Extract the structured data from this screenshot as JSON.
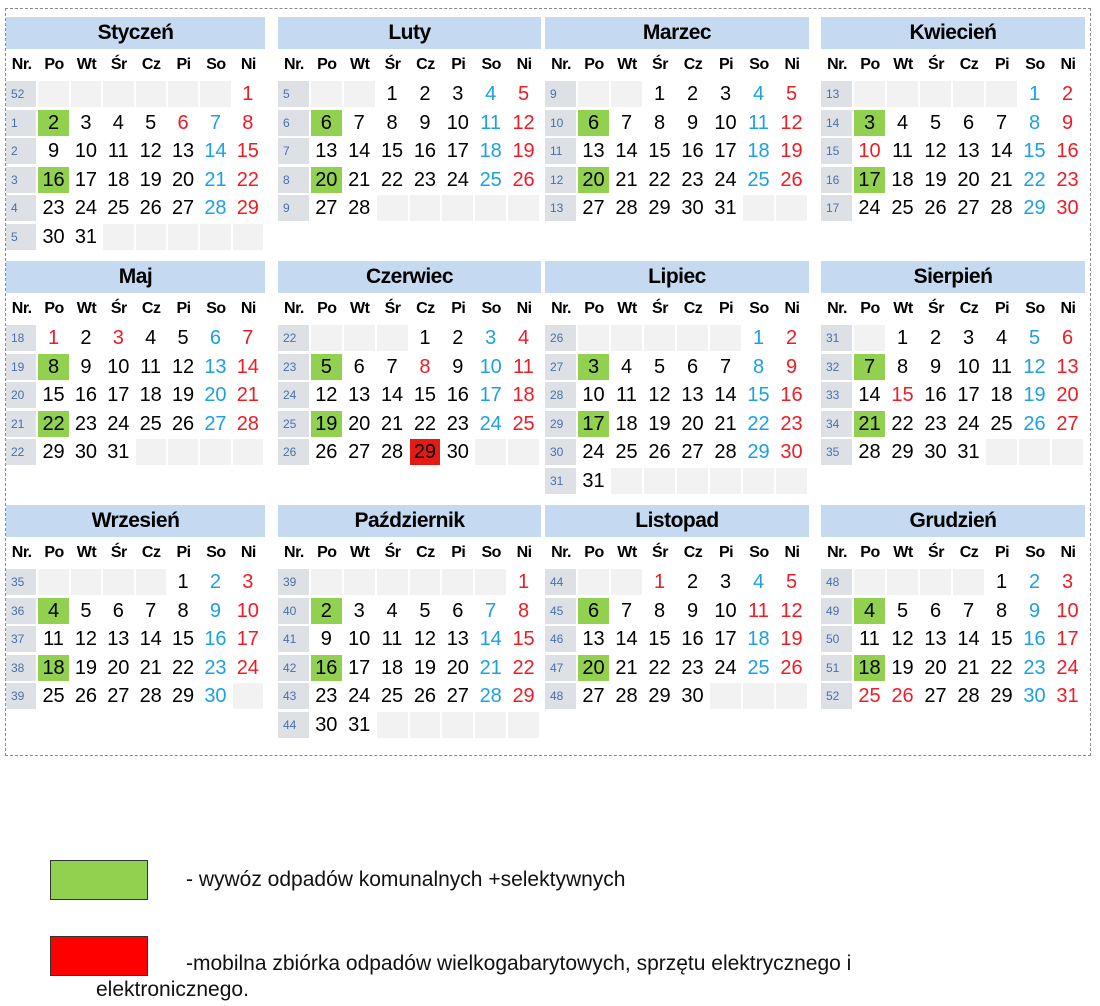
{
  "header_labels": [
    "Nr.",
    "Po",
    "Wt",
    "Śr",
    "Cz",
    "Pi",
    "So",
    "Ni"
  ],
  "colors": {
    "collection": "#92d050",
    "bulky": "#e31b13",
    "saturday": "#1ba1e2",
    "sunday": "#ee1c24",
    "header_bg": "#c5d9f1"
  },
  "months": [
    {
      "name": "Styczeń",
      "weeks": [
        {
          "nr": "52",
          "days": [
            "",
            "",
            "",
            "",
            "",
            "",
            "1"
          ]
        },
        {
          "nr": "1",
          "days": [
            "2",
            "3",
            "4",
            "5",
            "6",
            "7",
            "8"
          ]
        },
        {
          "nr": "2",
          "days": [
            "9",
            "10",
            "11",
            "12",
            "13",
            "14",
            "15"
          ]
        },
        {
          "nr": "3",
          "days": [
            "16",
            "17",
            "18",
            "19",
            "20",
            "21",
            "22"
          ]
        },
        {
          "nr": "4",
          "days": [
            "23",
            "24",
            "25",
            "26",
            "27",
            "28",
            "29"
          ]
        },
        {
          "nr": "5",
          "days": [
            "30",
            "31",
            "",
            "",
            "",
            "",
            ""
          ]
        }
      ],
      "green": [
        "2",
        "16"
      ],
      "red": [],
      "extra_red": [
        "6"
      ]
    },
    {
      "name": "Luty",
      "weeks": [
        {
          "nr": "5",
          "days": [
            "",
            "",
            "1",
            "2",
            "3",
            "4",
            "5"
          ]
        },
        {
          "nr": "6",
          "days": [
            "6",
            "7",
            "8",
            "9",
            "10",
            "11",
            "12"
          ]
        },
        {
          "nr": "7",
          "days": [
            "13",
            "14",
            "15",
            "16",
            "17",
            "18",
            "19"
          ]
        },
        {
          "nr": "8",
          "days": [
            "20",
            "21",
            "22",
            "23",
            "24",
            "25",
            "26"
          ]
        },
        {
          "nr": "9",
          "days": [
            "27",
            "28",
            "",
            "",
            "",
            "",
            ""
          ]
        }
      ],
      "green": [
        "6",
        "20"
      ],
      "red": [],
      "extra_red": []
    },
    {
      "name": "Marzec",
      "weeks": [
        {
          "nr": "9",
          "days": [
            "",
            "",
            "1",
            "2",
            "3",
            "4",
            "5"
          ]
        },
        {
          "nr": "10",
          "days": [
            "6",
            "7",
            "8",
            "9",
            "10",
            "11",
            "12"
          ]
        },
        {
          "nr": "11",
          "days": [
            "13",
            "14",
            "15",
            "16",
            "17",
            "18",
            "19"
          ]
        },
        {
          "nr": "12",
          "days": [
            "20",
            "21",
            "22",
            "23",
            "24",
            "25",
            "26"
          ]
        },
        {
          "nr": "13",
          "days": [
            "27",
            "28",
            "29",
            "30",
            "31",
            "",
            ""
          ]
        }
      ],
      "green": [
        "6",
        "20"
      ],
      "red": [],
      "extra_red": []
    },
    {
      "name": "Kwiecień",
      "weeks": [
        {
          "nr": "13",
          "days": [
            "",
            "",
            "",
            "",
            "",
            "1",
            "2"
          ]
        },
        {
          "nr": "14",
          "days": [
            "3",
            "4",
            "5",
            "6",
            "7",
            "8",
            "9"
          ]
        },
        {
          "nr": "15",
          "days": [
            "10",
            "11",
            "12",
            "13",
            "14",
            "15",
            "16"
          ]
        },
        {
          "nr": "16",
          "days": [
            "17",
            "18",
            "19",
            "20",
            "21",
            "22",
            "23"
          ]
        },
        {
          "nr": "17",
          "days": [
            "24",
            "25",
            "26",
            "27",
            "28",
            "29",
            "30"
          ]
        }
      ],
      "green": [
        "3",
        "17"
      ],
      "red": [],
      "extra_red": [
        "10"
      ]
    },
    {
      "name": "Maj",
      "weeks": [
        {
          "nr": "18",
          "days": [
            "1",
            "2",
            "3",
            "4",
            "5",
            "6",
            "7"
          ]
        },
        {
          "nr": "19",
          "days": [
            "8",
            "9",
            "10",
            "11",
            "12",
            "13",
            "14"
          ]
        },
        {
          "nr": "20",
          "days": [
            "15",
            "16",
            "17",
            "18",
            "19",
            "20",
            "21"
          ]
        },
        {
          "nr": "21",
          "days": [
            "22",
            "23",
            "24",
            "25",
            "26",
            "27",
            "28"
          ]
        },
        {
          "nr": "22",
          "days": [
            "29",
            "30",
            "31",
            "",
            "",
            "",
            ""
          ]
        }
      ],
      "green": [
        "8",
        "22"
      ],
      "red": [],
      "extra_red": [
        "1",
        "3"
      ]
    },
    {
      "name": "Czerwiec",
      "weeks": [
        {
          "nr": "22",
          "days": [
            "",
            "",
            "",
            "1",
            "2",
            "3",
            "4"
          ]
        },
        {
          "nr": "23",
          "days": [
            "5",
            "6",
            "7",
            "8",
            "9",
            "10",
            "11"
          ]
        },
        {
          "nr": "24",
          "days": [
            "12",
            "13",
            "14",
            "15",
            "16",
            "17",
            "18"
          ]
        },
        {
          "nr": "25",
          "days": [
            "19",
            "20",
            "21",
            "22",
            "23",
            "24",
            "25"
          ]
        },
        {
          "nr": "26",
          "days": [
            "26",
            "27",
            "28",
            "29",
            "30",
            "",
            ""
          ]
        }
      ],
      "green": [
        "5",
        "19"
      ],
      "red": [
        "29"
      ],
      "extra_red": [
        "8"
      ]
    },
    {
      "name": "Lipiec",
      "weeks": [
        {
          "nr": "26",
          "days": [
            "",
            "",
            "",
            "",
            "",
            "1",
            "2"
          ]
        },
        {
          "nr": "27",
          "days": [
            "3",
            "4",
            "5",
            "6",
            "7",
            "8",
            "9"
          ]
        },
        {
          "nr": "28",
          "days": [
            "10",
            "11",
            "12",
            "13",
            "14",
            "15",
            "16"
          ]
        },
        {
          "nr": "29",
          "days": [
            "17",
            "18",
            "19",
            "20",
            "21",
            "22",
            "23"
          ]
        },
        {
          "nr": "30",
          "days": [
            "24",
            "25",
            "26",
            "27",
            "28",
            "29",
            "30"
          ]
        },
        {
          "nr": "31",
          "days": [
            "31",
            "",
            "",
            "",
            "",
            "",
            ""
          ]
        }
      ],
      "green": [
        "3",
        "17"
      ],
      "red": [],
      "extra_red": []
    },
    {
      "name": "Sierpień",
      "weeks": [
        {
          "nr": "31",
          "days": [
            "",
            "1",
            "2",
            "3",
            "4",
            "5",
            "6"
          ]
        },
        {
          "nr": "32",
          "days": [
            "7",
            "8",
            "9",
            "10",
            "11",
            "12",
            "13"
          ]
        },
        {
          "nr": "33",
          "days": [
            "14",
            "15",
            "16",
            "17",
            "18",
            "19",
            "20"
          ]
        },
        {
          "nr": "34",
          "days": [
            "21",
            "22",
            "23",
            "24",
            "25",
            "26",
            "27"
          ]
        },
        {
          "nr": "35",
          "days": [
            "28",
            "29",
            "30",
            "31",
            "",
            "",
            ""
          ]
        }
      ],
      "green": [
        "7",
        "21"
      ],
      "red": [],
      "extra_red": [
        "15"
      ]
    },
    {
      "name": "Wrzesień",
      "weeks": [
        {
          "nr": "35",
          "days": [
            "",
            "",
            "",
            "",
            "1",
            "2",
            "3"
          ]
        },
        {
          "nr": "36",
          "days": [
            "4",
            "5",
            "6",
            "7",
            "8",
            "9",
            "10"
          ]
        },
        {
          "nr": "37",
          "days": [
            "11",
            "12",
            "13",
            "14",
            "15",
            "16",
            "17"
          ]
        },
        {
          "nr": "38",
          "days": [
            "18",
            "19",
            "20",
            "21",
            "22",
            "23",
            "24"
          ]
        },
        {
          "nr": "39",
          "days": [
            "25",
            "26",
            "27",
            "28",
            "29",
            "30",
            ""
          ]
        }
      ],
      "green": [
        "4",
        "18"
      ],
      "red": [],
      "extra_red": []
    },
    {
      "name": "Październik",
      "weeks": [
        {
          "nr": "39",
          "days": [
            "",
            "",
            "",
            "",
            "",
            "",
            "1"
          ]
        },
        {
          "nr": "40",
          "days": [
            "2",
            "3",
            "4",
            "5",
            "6",
            "7",
            "8"
          ]
        },
        {
          "nr": "41",
          "days": [
            "9",
            "10",
            "11",
            "12",
            "13",
            "14",
            "15"
          ]
        },
        {
          "nr": "42",
          "days": [
            "16",
            "17",
            "18",
            "19",
            "20",
            "21",
            "22"
          ]
        },
        {
          "nr": "43",
          "days": [
            "23",
            "24",
            "25",
            "26",
            "27",
            "28",
            "29"
          ]
        },
        {
          "nr": "44",
          "days": [
            "30",
            "31",
            "",
            "",
            "",
            "",
            ""
          ]
        }
      ],
      "green": [
        "2",
        "16"
      ],
      "red": [],
      "extra_red": []
    },
    {
      "name": "Listopad",
      "weeks": [
        {
          "nr": "44",
          "days": [
            "",
            "",
            "1",
            "2",
            "3",
            "4",
            "5"
          ]
        },
        {
          "nr": "45",
          "days": [
            "6",
            "7",
            "8",
            "9",
            "10",
            "11",
            "12"
          ]
        },
        {
          "nr": "46",
          "days": [
            "13",
            "14",
            "15",
            "16",
            "17",
            "18",
            "19"
          ]
        },
        {
          "nr": "47",
          "days": [
            "20",
            "21",
            "22",
            "23",
            "24",
            "25",
            "26"
          ]
        },
        {
          "nr": "48",
          "days": [
            "27",
            "28",
            "29",
            "30",
            "",
            "",
            ""
          ]
        }
      ],
      "green": [
        "6",
        "20"
      ],
      "red": [],
      "extra_red": [
        "1",
        "11"
      ]
    },
    {
      "name": "Grudzień",
      "weeks": [
        {
          "nr": "48",
          "days": [
            "",
            "",
            "",
            "",
            "1",
            "2",
            "3"
          ]
        },
        {
          "nr": "49",
          "days": [
            "4",
            "5",
            "6",
            "7",
            "8",
            "9",
            "10"
          ]
        },
        {
          "nr": "50",
          "days": [
            "11",
            "12",
            "13",
            "14",
            "15",
            "16",
            "17"
          ]
        },
        {
          "nr": "51",
          "days": [
            "18",
            "19",
            "20",
            "21",
            "22",
            "23",
            "24"
          ]
        },
        {
          "nr": "52",
          "days": [
            "25",
            "26",
            "27",
            "28",
            "29",
            "30",
            "31"
          ]
        }
      ],
      "green": [
        "4",
        "18"
      ],
      "red": [],
      "extra_red": [
        "25",
        "26"
      ]
    }
  ],
  "legend": {
    "green_text": "- wywóz odpadów komunalnych +selektywnych",
    "red_text_line1": "-mobilna zbiórka odpadów wielkogabarytowych, sprzętu elektrycznego i",
    "red_text_line2": "elektronicznego."
  }
}
